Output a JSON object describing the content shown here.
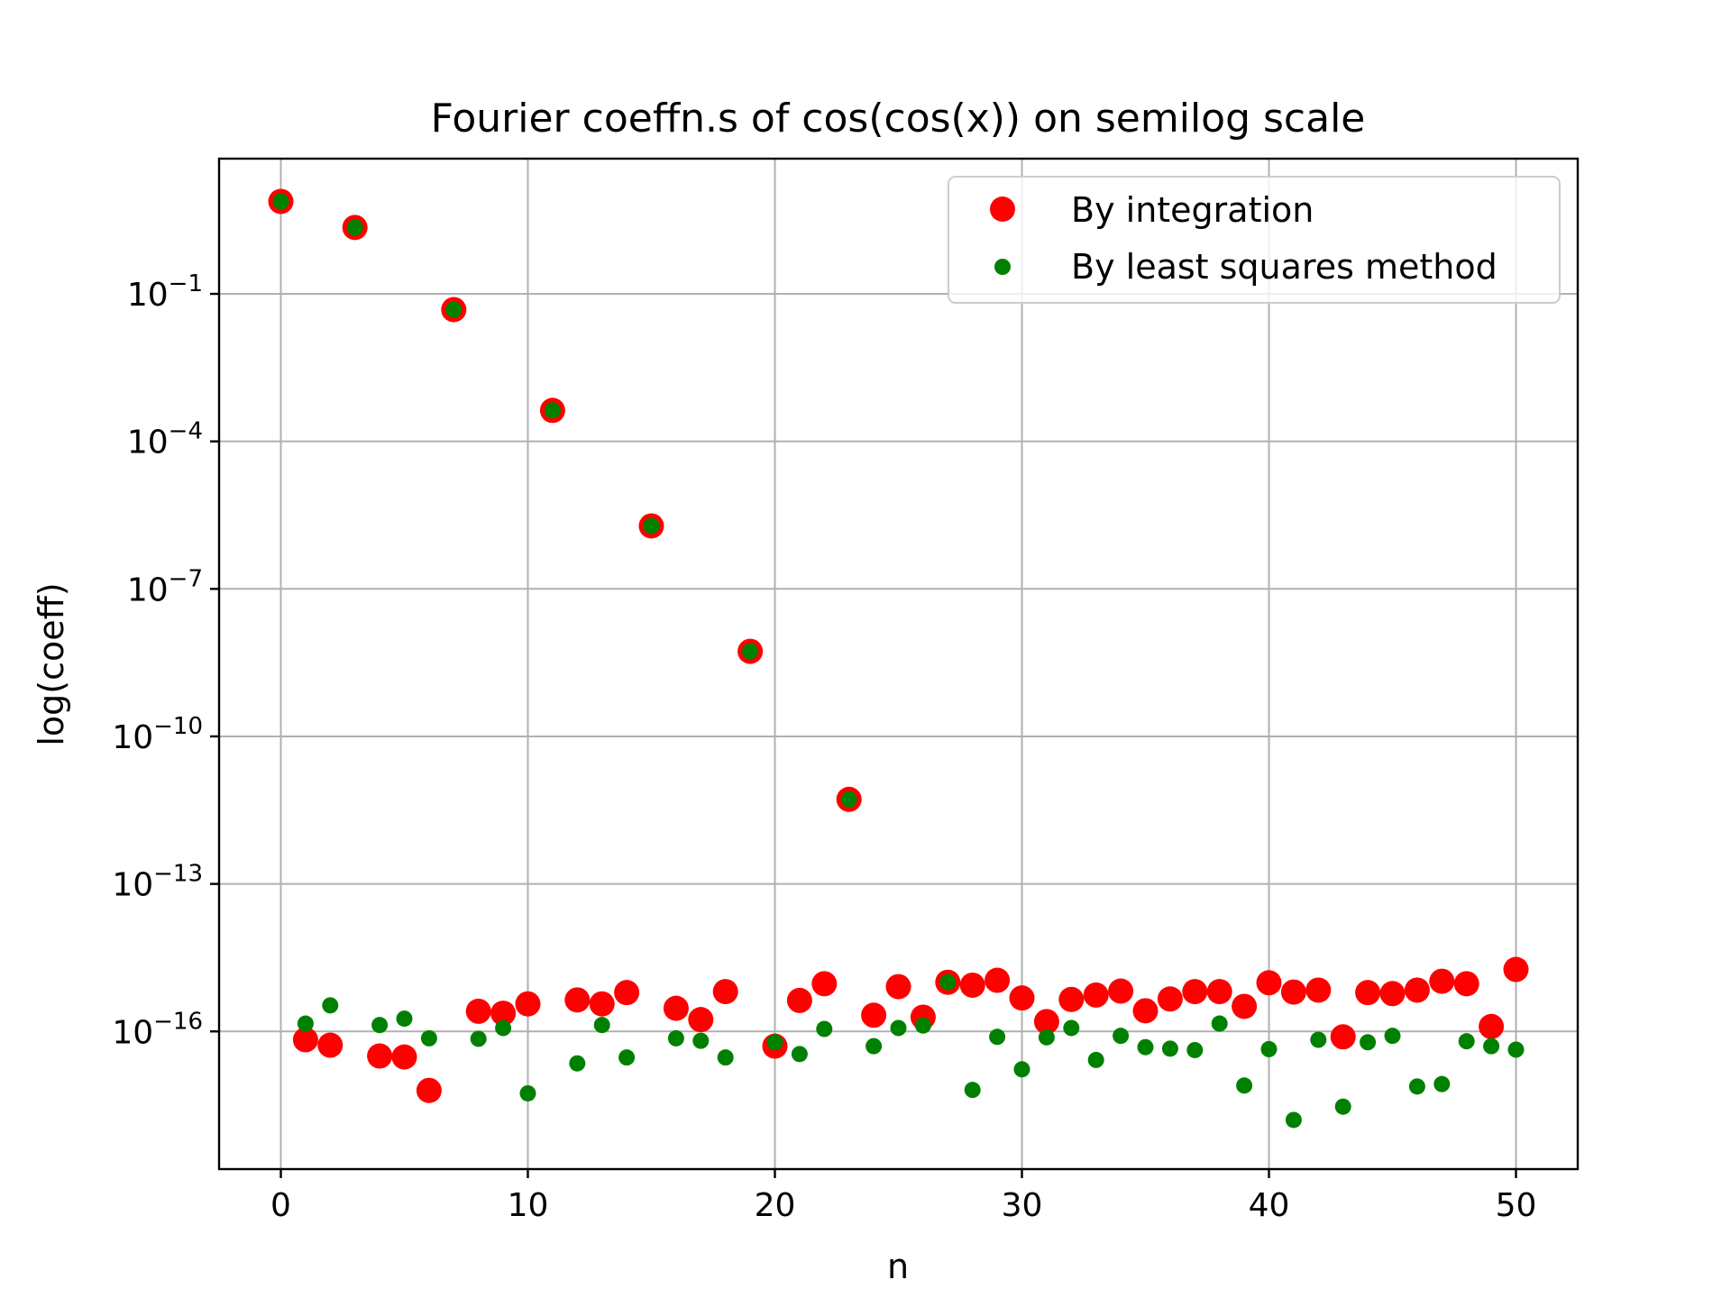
{
  "chart_data": {
    "type": "scatter",
    "title": "Fourier coeffn.s of cos(cos(x)) on semilog scale",
    "xlabel": "n",
    "ylabel": "log(coeff)",
    "yscale": "log",
    "xlim": [
      -2.5,
      52.5
    ],
    "ylim_log10": [
      -18.8,
      1.75
    ],
    "xticks": [
      0,
      10,
      20,
      30,
      40,
      50
    ],
    "yticks": [
      {
        "exp": -1,
        "label": "10",
        "sup": "−1"
      },
      {
        "exp": -4,
        "label": "10",
        "sup": "−4"
      },
      {
        "exp": -7,
        "label": "10",
        "sup": "−7"
      },
      {
        "exp": -10,
        "label": "10",
        "sup": "−10"
      },
      {
        "exp": -13,
        "label": "10",
        "sup": "−13"
      },
      {
        "exp": -16,
        "label": "10",
        "sup": "−16"
      }
    ],
    "grid": true,
    "legend_position": "top-right",
    "series": [
      {
        "name": "By integration",
        "color": "#ff0000",
        "marker": "large-circle",
        "x": [
          0,
          1,
          2,
          3,
          4,
          5,
          6,
          7,
          8,
          9,
          10,
          11,
          12,
          13,
          14,
          15,
          16,
          17,
          18,
          19,
          20,
          21,
          22,
          23,
          24,
          25,
          26,
          27,
          28,
          29,
          30,
          31,
          32,
          33,
          34,
          35,
          36,
          37,
          38,
          39,
          40,
          41,
          42,
          43,
          44,
          45,
          46,
          47,
          48,
          49,
          50
        ],
        "log10_y": [
          0.88,
          -16.17,
          -16.28,
          0.35,
          -16.5,
          -16.52,
          -17.2,
          -1.32,
          -15.59,
          -15.63,
          -15.44,
          -3.37,
          -15.36,
          -15.44,
          -15.21,
          -5.72,
          -15.53,
          -15.76,
          -15.19,
          -8.27,
          -16.3,
          -15.37,
          -15.03,
          -11.28,
          -15.67,
          -15.09,
          -15.71,
          -15.0,
          -15.06,
          -14.96,
          -15.32,
          -15.8,
          -15.35,
          -15.26,
          -15.18,
          -15.58,
          -15.34,
          -15.19,
          -15.19,
          -15.49,
          -15.01,
          -15.2,
          -15.16,
          -16.11,
          -15.21,
          -15.23,
          -15.16,
          -14.98,
          -15.03,
          -15.9,
          -14.74
        ],
        "y": [
          7.6,
          "6.8e-17",
          "5.2e-17",
          2.2,
          "3.2e-17",
          "3.0e-17",
          "6.3e-18",
          0.048,
          "2.6e-16",
          "2.3e-16",
          "3.6e-16",
          0.00043,
          "4.4e-16",
          "3.6e-16",
          "6.2e-16",
          "1.9e-6",
          "3.0e-16",
          "1.7e-16",
          "6.5e-16",
          "5.4e-9",
          "5.0e-17",
          "4.3e-16",
          "9.3e-16",
          "5.2e-12",
          "2.1e-16",
          "8.1e-16",
          "1.9e-16",
          "1.0e-15",
          "8.7e-16",
          "1.1e-15",
          "4.8e-16",
          "1.6e-16",
          "4.5e-16",
          "5.5e-16",
          "6.6e-16",
          "2.6e-16",
          "4.6e-16",
          "6.5e-16",
          "6.5e-16",
          "3.2e-16",
          "9.8e-16",
          "6.3e-16",
          "6.9e-16",
          "7.8e-17",
          "6.2e-16",
          "5.9e-16",
          "6.9e-16",
          "1.05e-15",
          "9.3e-16",
          "1.3e-16",
          "1.8e-15"
        ]
      },
      {
        "name": "By least squares method",
        "color": "#008000",
        "marker": "small-circle",
        "x": [
          0,
          1,
          2,
          3,
          4,
          5,
          6,
          7,
          8,
          9,
          10,
          11,
          12,
          13,
          14,
          15,
          16,
          17,
          18,
          19,
          20,
          21,
          22,
          23,
          24,
          25,
          26,
          27,
          28,
          29,
          30,
          31,
          32,
          33,
          34,
          35,
          36,
          37,
          38,
          39,
          40,
          41,
          42,
          43,
          44,
          45,
          46,
          47,
          48,
          49,
          50
        ],
        "log10_y": [
          0.88,
          -15.84,
          -15.47,
          0.35,
          -15.87,
          -15.74,
          -16.14,
          -1.32,
          -16.15,
          -15.93,
          -17.26,
          -3.37,
          -16.65,
          -15.87,
          -16.53,
          -5.72,
          -16.14,
          -16.19,
          -16.53,
          -8.27,
          -16.22,
          -16.46,
          -15.95,
          -11.28,
          -16.3,
          -15.93,
          -15.88,
          -15.0,
          -17.19,
          -16.11,
          -16.77,
          -16.12,
          -15.93,
          -16.58,
          -16.09,
          -16.32,
          -16.35,
          -16.38,
          -15.84,
          -17.1,
          -16.36,
          -17.8,
          -16.17,
          -17.53,
          -16.22,
          -16.09,
          -17.12,
          -17.07,
          -16.2,
          -16.3,
          -16.37
        ],
        "y": [
          7.6,
          "1.4e-16",
          "3.4e-16",
          2.2,
          "1.3e-16",
          "1.8e-16",
          "7.2e-17",
          0.048,
          "7.1e-17",
          "1.2e-16",
          "5.5e-18",
          0.00043,
          "2.2e-17",
          "1.3e-16",
          "3.0e-17",
          "1.9e-6",
          "7.2e-17",
          "6.5e-17",
          "3.0e-17",
          "5.4e-9",
          "6.0e-17",
          "3.5e-17",
          "1.1e-16",
          "5.2e-12",
          "5.0e-17",
          "1.2e-16",
          "1.3e-16",
          "1.0e-15",
          "6.5e-18",
          "7.8e-17",
          "1.7e-17",
          "7.6e-17",
          "1.2e-16",
          "2.6e-17",
          "8.1e-17",
          "4.8e-17",
          "4.5e-17",
          "4.2e-17",
          "1.4e-16",
          "7.9e-18",
          "4.4e-17",
          "1.6e-18",
          "6.8e-17",
          "3.0e-18",
          "6.0e-17",
          "8.1e-17",
          "7.6e-18",
          "8.5e-18",
          "6.3e-17",
          "5.0e-17",
          "4.3e-17"
        ]
      }
    ]
  }
}
